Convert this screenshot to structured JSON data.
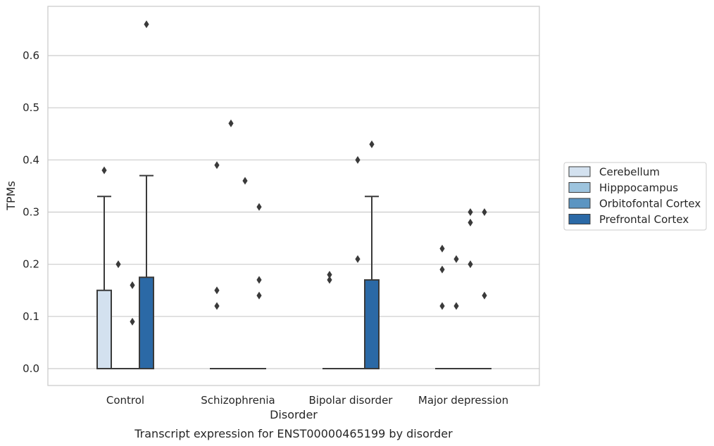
{
  "chart_data": {
    "type": "box",
    "title": "Transcript expression for ENST00000465199 by disorder",
    "xlabel": "Disorder",
    "ylabel": "TPMs",
    "ylim": [
      -0.033,
      0.693
    ],
    "yticks": [
      0.0,
      0.1,
      0.2,
      0.3,
      0.4,
      0.5,
      0.6
    ],
    "ytick_labels": [
      "0.0",
      "0.1",
      "0.2",
      "0.3",
      "0.4",
      "0.5",
      "0.6"
    ],
    "grid": true,
    "legend_position": "right",
    "categories": [
      "Control",
      "Schizophrenia",
      "Bipolar disorder",
      "Major depression"
    ],
    "series": [
      {
        "name": "Cerebellum",
        "color": "#d3e1ef",
        "boxes": [
          {
            "q1": 0,
            "median": 0,
            "q3": 0.15,
            "whisker_low": 0,
            "whisker_high": 0.33,
            "outliers": [
              0.38
            ]
          },
          {
            "q1": 0,
            "median": 0,
            "q3": 0,
            "whisker_low": 0,
            "whisker_high": 0,
            "outliers": [
              0.12,
              0.15,
              0.39
            ]
          },
          {
            "q1": 0,
            "median": 0,
            "q3": 0,
            "whisker_low": 0,
            "whisker_high": 0,
            "outliers": [
              0.17,
              0.18
            ]
          },
          {
            "q1": 0,
            "median": 0,
            "q3": 0,
            "whisker_low": 0,
            "whisker_high": 0,
            "outliers": [
              0.12,
              0.19,
              0.23
            ]
          }
        ]
      },
      {
        "name": "Hipppocampus",
        "color": "#9dc4de",
        "boxes": [
          {
            "q1": 0,
            "median": 0,
            "q3": 0,
            "whisker_low": 0,
            "whisker_high": 0,
            "outliers": [
              0.2
            ]
          },
          {
            "q1": 0,
            "median": 0,
            "q3": 0,
            "whisker_low": 0,
            "whisker_high": 0,
            "outliers": [
              0.47
            ]
          },
          {
            "q1": 0,
            "median": 0,
            "q3": 0,
            "whisker_low": 0,
            "whisker_high": 0,
            "outliers": []
          },
          {
            "q1": 0,
            "median": 0,
            "q3": 0,
            "whisker_low": 0,
            "whisker_high": 0,
            "outliers": [
              0.12,
              0.21
            ]
          }
        ]
      },
      {
        "name": "Orbitofontal Cortex",
        "color": "#5b95c2",
        "boxes": [
          {
            "q1": 0,
            "median": 0,
            "q3": 0,
            "whisker_low": 0,
            "whisker_high": 0,
            "outliers": [
              0.09,
              0.16
            ]
          },
          {
            "q1": 0,
            "median": 0,
            "q3": 0,
            "whisker_low": 0,
            "whisker_high": 0,
            "outliers": [
              0.36
            ]
          },
          {
            "q1": 0,
            "median": 0,
            "q3": 0,
            "whisker_low": 0,
            "whisker_high": 0,
            "outliers": [
              0.21,
              0.4
            ]
          },
          {
            "q1": 0,
            "median": 0,
            "q3": 0,
            "whisker_low": 0,
            "whisker_high": 0,
            "outliers": [
              0.2,
              0.28,
              0.3
            ]
          }
        ]
      },
      {
        "name": "Prefrontal Cortex",
        "color": "#2b69a6",
        "boxes": [
          {
            "q1": 0,
            "median": 0,
            "q3": 0.175,
            "whisker_low": 0,
            "whisker_high": 0.37,
            "outliers": [
              0.66
            ]
          },
          {
            "q1": 0,
            "median": 0,
            "q3": 0,
            "whisker_low": 0,
            "whisker_high": 0,
            "outliers": [
              0.14,
              0.17,
              0.31
            ]
          },
          {
            "q1": 0,
            "median": 0,
            "q3": 0.17,
            "whisker_low": 0,
            "whisker_high": 0.33,
            "outliers": [
              0.43
            ]
          },
          {
            "q1": 0,
            "median": 0,
            "q3": 0,
            "whisker_low": 0,
            "whisker_high": 0,
            "outliers": [
              0.14,
              0.3
            ]
          }
        ]
      }
    ]
  }
}
